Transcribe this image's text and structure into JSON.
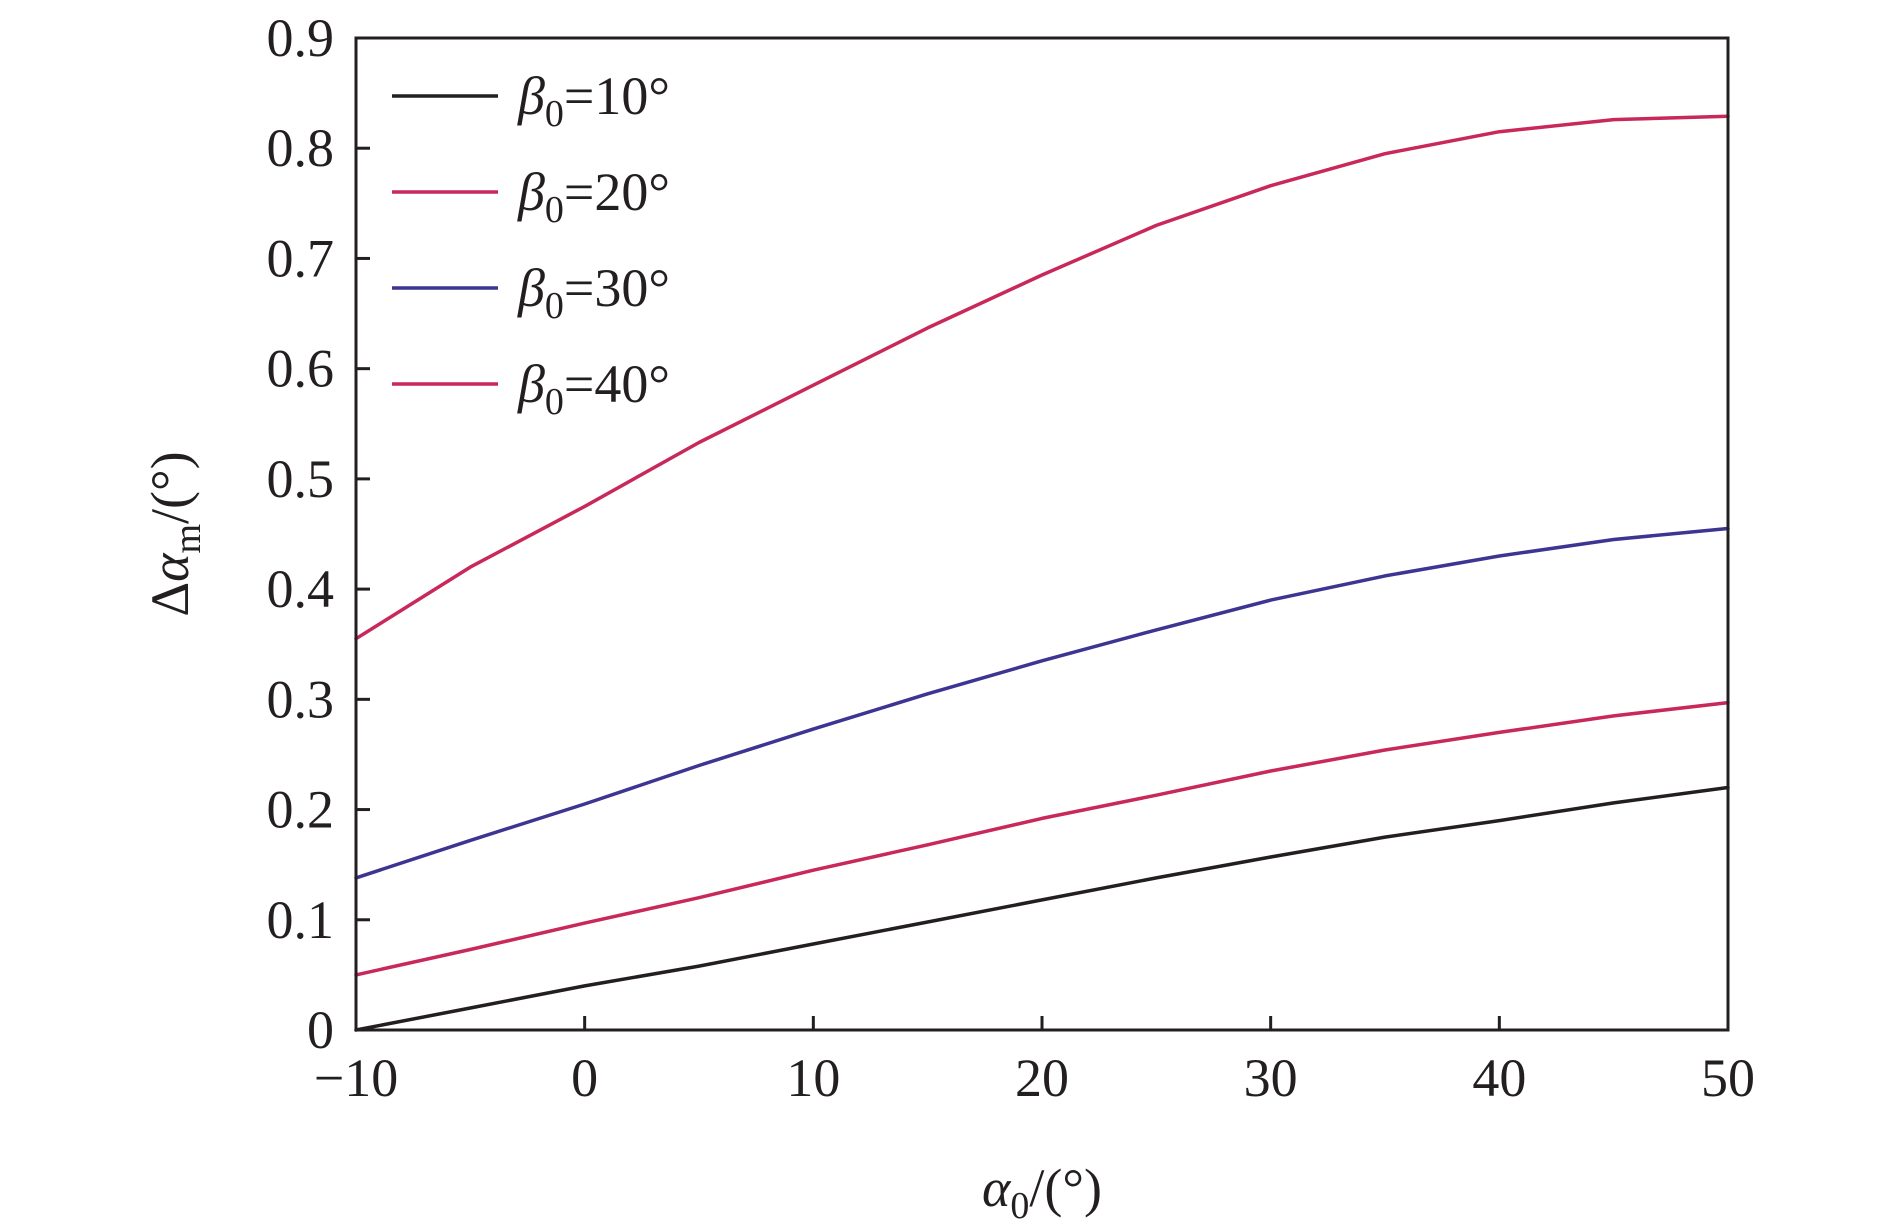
{
  "chart_data": {
    "type": "line",
    "title": "",
    "xlabel": {
      "symbol": "α",
      "subscript": "0",
      "unit": "/(°)"
    },
    "ylabel": {
      "prefix": "Δ",
      "symbol": "α",
      "subscript": "m",
      "unit": "/(°)"
    },
    "xlim": [
      -10,
      50
    ],
    "ylim": [
      0,
      0.9
    ],
    "xticks": [
      -10,
      0,
      10,
      20,
      30,
      40,
      50
    ],
    "xtick_labels": [
      "−10",
      "0",
      "10",
      "20",
      "30",
      "40",
      "50"
    ],
    "yticks": [
      0,
      0.1,
      0.2,
      0.3,
      0.4,
      0.5,
      0.6,
      0.7,
      0.8,
      0.9
    ],
    "ytick_labels": [
      "0",
      "0.1",
      "0.2",
      "0.3",
      "0.4",
      "0.5",
      "0.6",
      "0.7",
      "0.8",
      "0.9"
    ],
    "grid": false,
    "legend_position": "top-left",
    "x": [
      -10,
      -5,
      0,
      5,
      10,
      15,
      20,
      25,
      30,
      35,
      40,
      45,
      50
    ],
    "series": [
      {
        "name": "β0=10°",
        "label": {
          "symbol": "β",
          "subscript": "0",
          "rest": "=10°"
        },
        "color": "#231f20",
        "values": [
          0.0,
          0.02,
          0.04,
          0.058,
          0.078,
          0.098,
          0.118,
          0.138,
          0.157,
          0.175,
          0.19,
          0.206,
          0.22
        ]
      },
      {
        "name": "β0=20°",
        "label": {
          "symbol": "β",
          "subscript": "0",
          "rest": "=20°"
        },
        "color": "#c8285a",
        "values": [
          0.05,
          0.073,
          0.097,
          0.12,
          0.145,
          0.168,
          0.192,
          0.213,
          0.235,
          0.254,
          0.27,
          0.285,
          0.297
        ]
      },
      {
        "name": "β0=30°",
        "label": {
          "symbol": "β",
          "subscript": "0",
          "rest": "=30°"
        },
        "color": "#3c3592",
        "values": [
          0.138,
          0.172,
          0.205,
          0.24,
          0.273,
          0.305,
          0.335,
          0.363,
          0.39,
          0.412,
          0.43,
          0.445,
          0.455
        ]
      },
      {
        "name": "β0=40°",
        "label": {
          "symbol": "β",
          "subscript": "0",
          "rest": "=40°"
        },
        "color": "#c8285a",
        "values": [
          0.355,
          0.42,
          0.475,
          0.533,
          0.585,
          0.637,
          0.685,
          0.73,
          0.766,
          0.795,
          0.815,
          0.826,
          0.829
        ]
      }
    ]
  }
}
